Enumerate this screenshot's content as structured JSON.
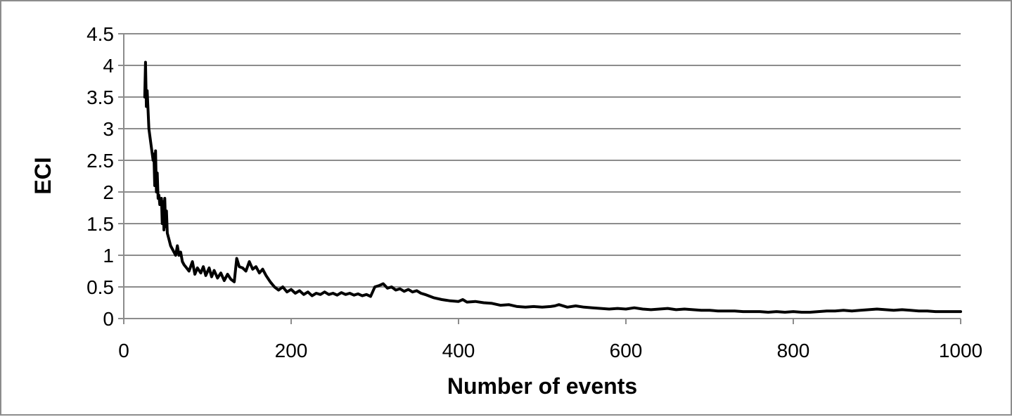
{
  "chart_data": {
    "type": "line",
    "title": "",
    "xlabel": "Number of events",
    "ylabel": "ECI",
    "xlim": [
      0,
      1000
    ],
    "ylim": [
      0,
      4.5
    ],
    "x_ticks": [
      0,
      200,
      400,
      600,
      800,
      1000
    ],
    "y_ticks": [
      0,
      0.5,
      1,
      1.5,
      2,
      2.5,
      3,
      3.5,
      4,
      4.5
    ],
    "y_tick_labels": [
      "0",
      "0.5",
      "1",
      "1.5",
      "2",
      "2.5",
      "3",
      "3.5",
      "4",
      "4.5"
    ],
    "x_tick_labels": [
      "0",
      "200",
      "400",
      "600",
      "800",
      "1000"
    ],
    "grid": "horizontal",
    "legend": "none",
    "line_color": "#000000",
    "grid_color": "#8c8c8c",
    "series": [
      {
        "x": [
          25,
          26,
          27,
          28,
          29,
          30,
          31,
          33,
          35,
          36,
          37,
          38,
          39,
          40,
          41,
          42,
          43,
          45,
          46,
          47,
          48,
          49,
          50,
          51,
          52,
          54,
          56,
          58,
          60,
          62,
          64,
          66,
          68,
          70,
          72,
          75,
          78,
          82,
          85,
          88,
          92,
          95,
          98,
          102,
          105,
          108,
          112,
          116,
          120,
          124,
          128,
          132,
          135,
          138,
          142,
          146,
          150,
          154,
          158,
          162,
          166,
          170,
          175,
          180,
          185,
          190,
          195,
          200,
          205,
          210,
          215,
          220,
          225,
          230,
          235,
          240,
          245,
          250,
          255,
          260,
          265,
          270,
          275,
          280,
          285,
          290,
          295,
          300,
          305,
          310,
          315,
          320,
          325,
          330,
          335,
          340,
          345,
          350,
          355,
          360,
          370,
          380,
          390,
          400,
          405,
          410,
          420,
          430,
          440,
          450,
          460,
          470,
          480,
          490,
          500,
          510,
          515,
          520,
          530,
          540,
          550,
          560,
          570,
          580,
          590,
          600,
          610,
          620,
          630,
          640,
          650,
          660,
          670,
          680,
          690,
          700,
          710,
          720,
          730,
          740,
          750,
          760,
          770,
          780,
          790,
          800,
          810,
          820,
          830,
          840,
          850,
          860,
          870,
          880,
          890,
          900,
          910,
          920,
          930,
          940,
          950,
          960,
          970,
          980,
          990,
          1000
        ],
        "y": [
          3.5,
          4.05,
          3.35,
          3.6,
          3.3,
          3.0,
          2.9,
          2.7,
          2.5,
          2.6,
          2.1,
          2.65,
          2.0,
          2.3,
          1.9,
          1.95,
          1.8,
          1.9,
          1.5,
          1.85,
          1.4,
          1.9,
          1.45,
          1.7,
          1.35,
          1.25,
          1.15,
          1.1,
          1.05,
          1.0,
          1.15,
          1.0,
          1.05,
          0.9,
          0.85,
          0.8,
          0.75,
          0.9,
          0.7,
          0.8,
          0.72,
          0.82,
          0.68,
          0.8,
          0.66,
          0.76,
          0.64,
          0.72,
          0.6,
          0.7,
          0.62,
          0.58,
          0.95,
          0.82,
          0.8,
          0.75,
          0.9,
          0.78,
          0.82,
          0.72,
          0.78,
          0.68,
          0.58,
          0.5,
          0.45,
          0.5,
          0.42,
          0.46,
          0.4,
          0.44,
          0.38,
          0.42,
          0.36,
          0.4,
          0.38,
          0.42,
          0.38,
          0.4,
          0.37,
          0.41,
          0.38,
          0.4,
          0.37,
          0.39,
          0.36,
          0.38,
          0.35,
          0.5,
          0.52,
          0.55,
          0.48,
          0.5,
          0.45,
          0.47,
          0.43,
          0.46,
          0.42,
          0.44,
          0.4,
          0.38,
          0.33,
          0.3,
          0.28,
          0.27,
          0.3,
          0.26,
          0.27,
          0.25,
          0.24,
          0.21,
          0.22,
          0.19,
          0.18,
          0.19,
          0.18,
          0.19,
          0.2,
          0.22,
          0.18,
          0.2,
          0.18,
          0.17,
          0.16,
          0.15,
          0.16,
          0.15,
          0.17,
          0.15,
          0.14,
          0.15,
          0.16,
          0.14,
          0.15,
          0.14,
          0.13,
          0.13,
          0.12,
          0.12,
          0.12,
          0.11,
          0.11,
          0.11,
          0.1,
          0.11,
          0.1,
          0.11,
          0.1,
          0.1,
          0.11,
          0.12,
          0.12,
          0.13,
          0.12,
          0.13,
          0.14,
          0.15,
          0.14,
          0.13,
          0.14,
          0.13,
          0.12,
          0.12,
          0.11,
          0.11,
          0.11,
          0.11
        ]
      }
    ]
  }
}
